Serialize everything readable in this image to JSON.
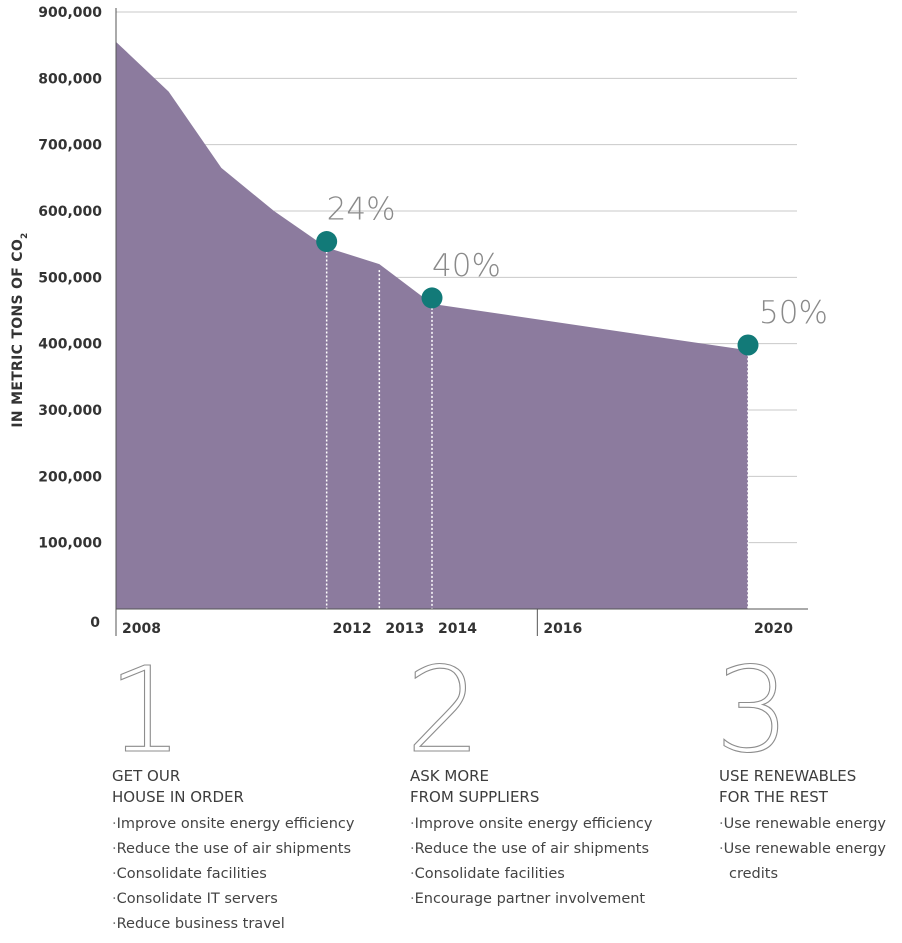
{
  "chart_data": {
    "type": "area",
    "ylabel": "IN METRIC TONS OF CO",
    "ylabel_subscript": "2",
    "ylim": [
      0,
      900000
    ],
    "xlim": [
      2008,
      2020.8
    ],
    "yticks": [
      "0",
      "100,000",
      "200,000",
      "300,000",
      "400,000",
      "500,000",
      "600,000",
      "700,000",
      "800,000",
      "900,000"
    ],
    "ytick_values": [
      0,
      100000,
      200000,
      300000,
      400000,
      500000,
      600000,
      700000,
      800000,
      900000
    ],
    "x_labels": [
      {
        "value": 2008,
        "label": "2008"
      },
      {
        "value": 2012,
        "label": "2012"
      },
      {
        "value": 2013,
        "label": "2013"
      },
      {
        "value": 2014,
        "label": "2014"
      },
      {
        "value": 2016,
        "label": "2016"
      },
      {
        "value": 2020,
        "label": "2020"
      }
    ],
    "area": {
      "x": [
        2008,
        2009,
        2010,
        2011,
        2012,
        2013,
        2014,
        2020
      ],
      "y": [
        855000,
        780000,
        665000,
        600000,
        545000,
        520000,
        460000,
        390000
      ]
    },
    "milestones": [
      {
        "x": 2012,
        "y": 554000,
        "label": "24%"
      },
      {
        "x": 2014,
        "y": 469000,
        "label": "40%"
      },
      {
        "x": 2020,
        "y": 398000,
        "label": "50%"
      }
    ],
    "grid": true,
    "colors": {
      "area": "#8c7b9e",
      "marker": "#127a78",
      "grid": "#c9c9c9",
      "axis": "#555555"
    }
  },
  "phases": [
    {
      "number": "1",
      "title_line1": "GET OUR",
      "title_line2": "HOUSE IN ORDER",
      "items": [
        "Improve onsite energy efficiency",
        "Reduce the use of air shipments",
        "Consolidate facilities",
        "Consolidate IT servers",
        "Reduce business travel"
      ]
    },
    {
      "number": "2",
      "title_line1": "ASK MORE",
      "title_line2": "FROM SUPPLIERS",
      "items": [
        "Improve onsite energy efficiency",
        "Reduce the use of air shipments",
        "Consolidate facilities",
        "Encourage partner involvement"
      ]
    },
    {
      "number": "3",
      "title_line1": "USE RENEWABLES",
      "title_line2": "FOR THE REST",
      "items": [
        "Use renewable energy",
        "Use renewable energy credits"
      ]
    }
  ]
}
